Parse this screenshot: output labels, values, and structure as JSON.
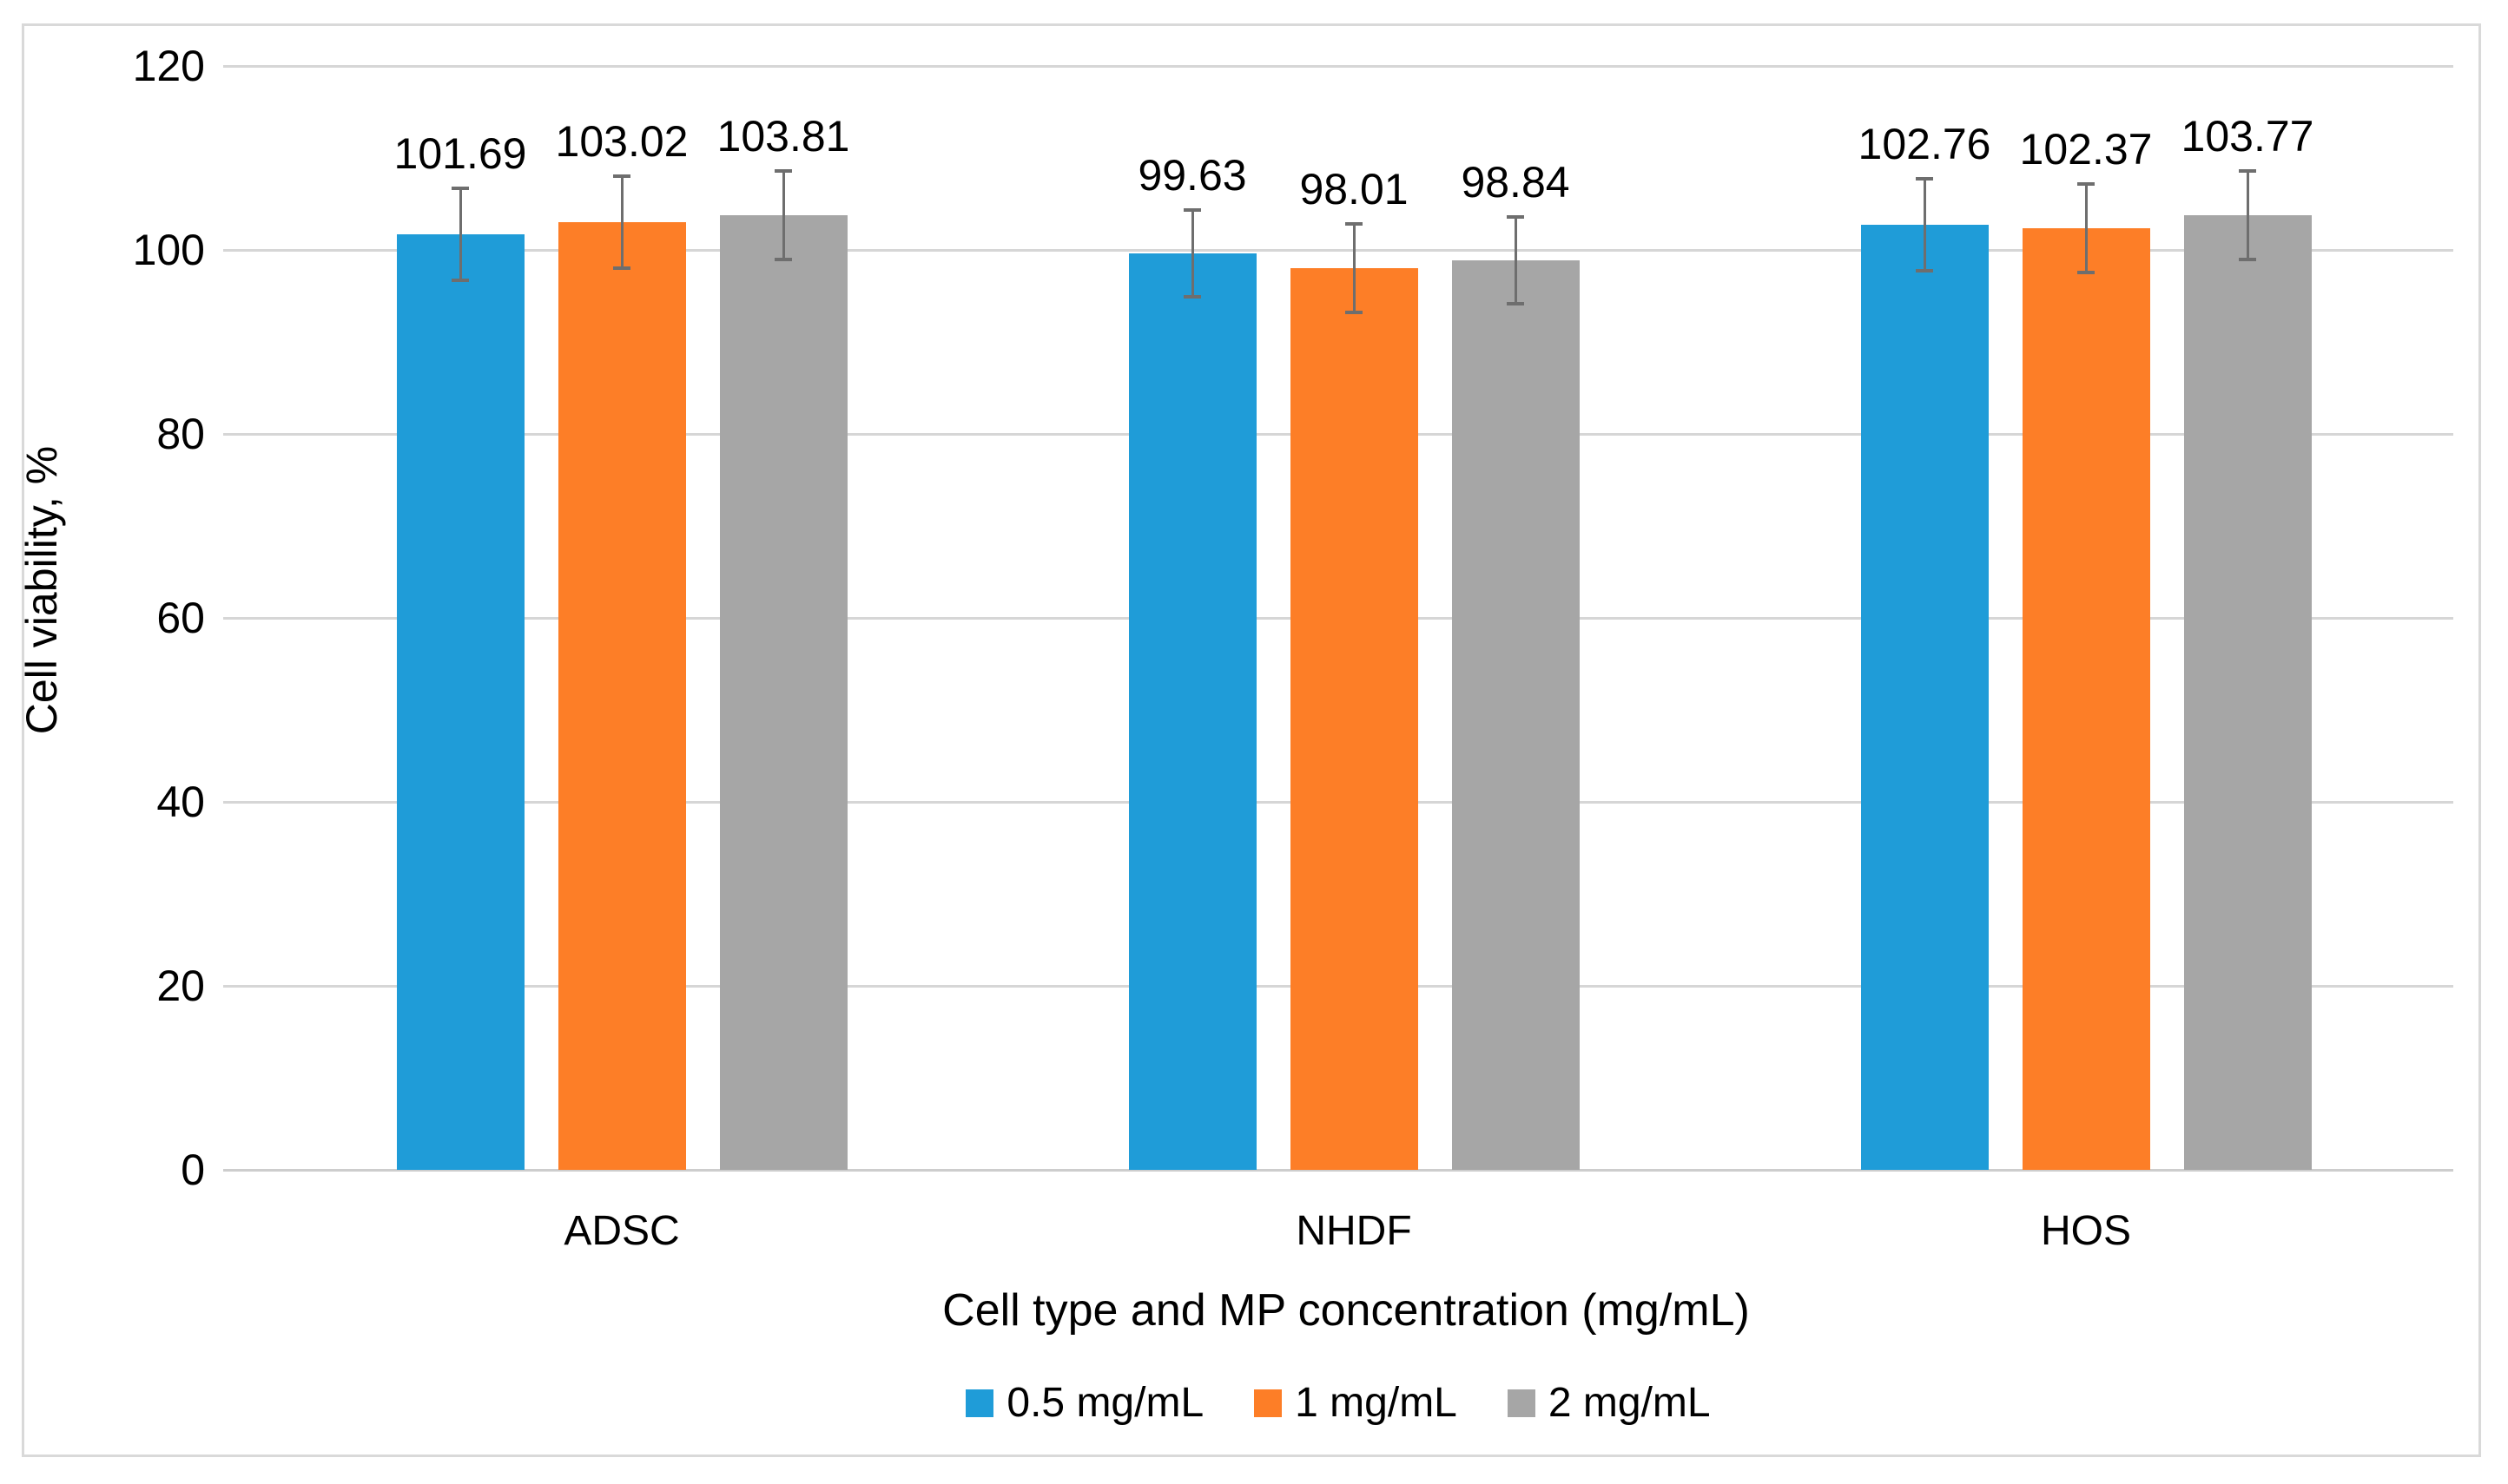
{
  "chart_data": {
    "type": "bar",
    "title": "",
    "xlabel": "Cell type and MP concentration (mg/mL)",
    "ylabel": "Cell viability, %",
    "categories": [
      "ADSC",
      "NHDF",
      "HOS"
    ],
    "series": [
      {
        "name": "0.5 mg/mL",
        "color": "#1F9CD8",
        "values": [
          101.69,
          99.63,
          102.76
        ],
        "data_labels": [
          "101.69",
          "99.63",
          "102.76"
        ],
        "error_bars_est": [
          5.2,
          4.9,
          5.2
        ]
      },
      {
        "name": "1 mg/mL",
        "color": "#FD7E27",
        "values": [
          103.02,
          98.01,
          102.37
        ],
        "data_labels": [
          "103.02",
          "98.01",
          "102.37"
        ],
        "error_bars_est": [
          5.2,
          5.0,
          5.0
        ]
      },
      {
        "name": "2 mg/mL",
        "color": "#A6A6A6",
        "values": [
          103.81,
          98.84,
          103.77
        ],
        "data_labels": [
          "103.81",
          "98.84",
          "103.77"
        ],
        "error_bars_est": [
          5.0,
          4.9,
          5.0
        ]
      }
    ],
    "ylim": [
      0,
      120
    ],
    "ytick_step": 20,
    "ytick_labels": [
      "0",
      "20",
      "40",
      "60",
      "80",
      "100",
      "120"
    ],
    "grid": "horizontal",
    "legend_position": "bottom",
    "colors": {
      "gridline": "#D6D6D6",
      "error_bar": "#6E6E6E",
      "text": "#000000",
      "chart_border": "#D9D9D9"
    }
  }
}
